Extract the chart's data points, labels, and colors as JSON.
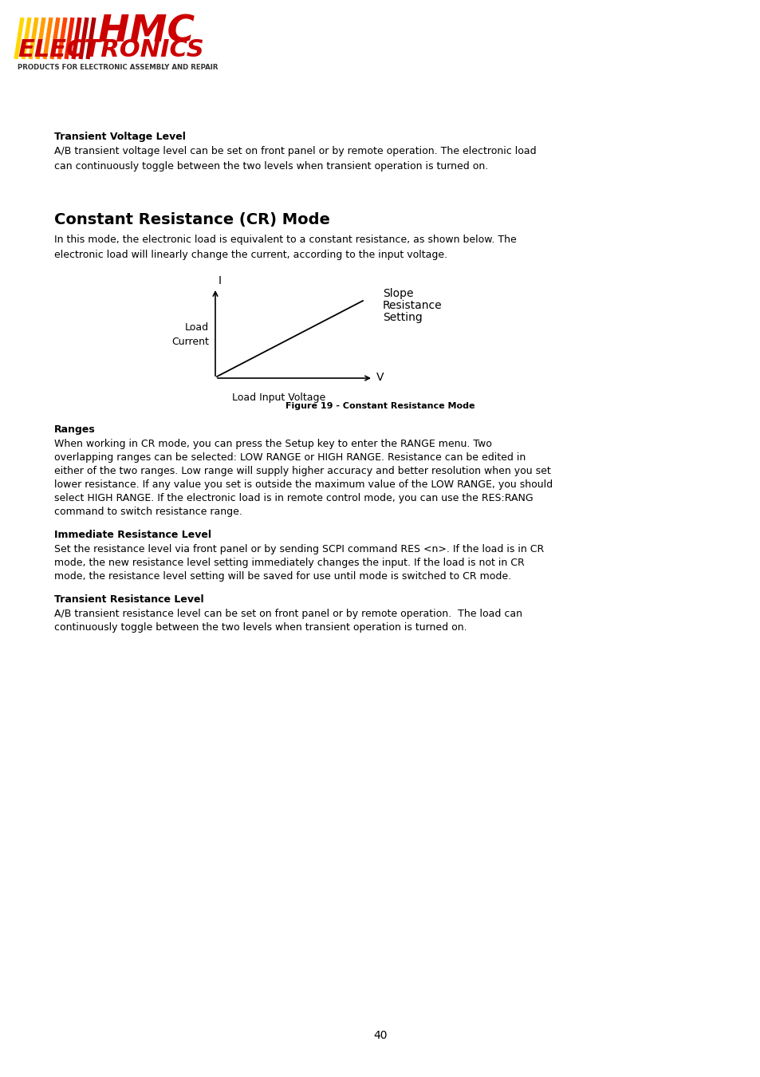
{
  "page_number": "40",
  "background_color": "#ffffff",
  "logo_subtext": "PRODUCTS FOR ELECTRONIC ASSEMBLY AND REPAIR",
  "section1_heading": "Transient Voltage Level",
  "section1_body_line1": "A/B transient voltage level can be set on front panel or by remote operation. The electronic load",
  "section1_body_line2": "can continuously toggle between the two levels when transient operation is turned on.",
  "section2_heading": "Constant Resistance (CR) Mode",
  "section2_body_line1": "In this mode, the electronic load is equivalent to a constant resistance, as shown below. The",
  "section2_body_line2": "electronic load will linearly change the current, according to the input voltage.",
  "figure_caption": "Figure 19 - Constant Resistance Mode",
  "figure_label_I": "I",
  "figure_label_V": "V",
  "figure_label_x": "Load Input Voltage",
  "figure_label_y1": "Load",
  "figure_label_y2": "Current",
  "figure_annotation_line1": "Slope",
  "figure_annotation_line2": "Resistance",
  "figure_annotation_line3": "Setting",
  "section3_heading": "Ranges",
  "section3_body_lines": [
    "When working in CR mode, you can press the Setup key to enter the RANGE menu. Two",
    "overlapping ranges can be selected: LOW RANGE or HIGH RANGE. Resistance can be edited in",
    "either of the two ranges. Low range will supply higher accuracy and better resolution when you set",
    "lower resistance. If any value you set is outside the maximum value of the LOW RANGE, you should",
    "select HIGH RANGE. If the electronic load is in remote control mode, you can use the RES:RANG",
    "command to switch resistance range."
  ],
  "section4_heading": "Immediate Resistance Level",
  "section4_body_lines": [
    "Set the resistance level via front panel or by sending SCPI command RES <n>. If the load is in CR",
    "mode, the new resistance level setting immediately changes the input. If the load is not in CR",
    "mode, the resistance level setting will be saved for use until mode is switched to CR mode."
  ],
  "section5_heading": "Transient Resistance Level",
  "section5_body_lines": [
    "A/B transient resistance level can be set on front panel or by remote operation.  The load can",
    "continuously toggle between the two levels when transient operation is turned on."
  ],
  "text_color": "#000000",
  "heading_bold_fontsize": 9,
  "body_fontsize": 9,
  "section2_heading_fontsize": 14,
  "logo_slash_colors": [
    "#FFD700",
    "#FFCC00",
    "#FFB800",
    "#FFA000",
    "#FF8800",
    "#FF6600",
    "#FF4400",
    "#EE2200",
    "#CC0000",
    "#BB0000",
    "#AA0000"
  ],
  "logo_hmc_color": "#CC0000",
  "logo_electronics_color": "#CC0000",
  "logo_subtext_color": "#333333"
}
